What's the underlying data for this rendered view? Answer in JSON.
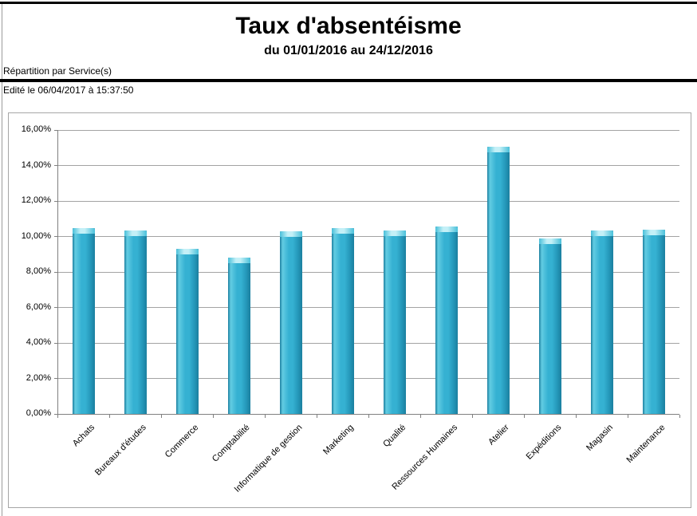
{
  "header": {
    "title": "Taux d'absentéisme",
    "subtitle": "du 01/01/2016 au 24/12/2016",
    "section_label": "Répartition par Service(s)",
    "edited_label": "Edité le 06/04/2017 à 15:37:50"
  },
  "colors": {
    "bar_dark": "#1b7f9f",
    "bar_mid_dark": "#2496b8",
    "bar_main": "#35b1d2",
    "bar_light": "#62cce2",
    "bar_cap": "#49c0da",
    "bar_cap_light": "#c4f0f7",
    "gridline": "#a3a3a3",
    "axis": "#808080",
    "chart_border": "#a6a6a6",
    "text": "#000000"
  },
  "chart_data": {
    "type": "bar",
    "title": "Taux d'absentéisme",
    "subtitle": "du 01/01/2016 au 24/12/2016",
    "categories": [
      "Achats",
      "Bureaux d'études",
      "Commerce",
      "Comptabilité",
      "Informatique de gestion",
      "Marketing",
      "Qualité",
      "Ressources Humaines",
      "Atelier",
      "Expéditions",
      "Magasin",
      "Maintenance"
    ],
    "values": [
      10.45,
      10.35,
      9.3,
      8.8,
      10.3,
      10.45,
      10.35,
      10.55,
      15.05,
      9.9,
      10.35,
      10.4
    ],
    "unit": "%",
    "ylim": [
      0,
      16
    ],
    "y_tick_step": 2,
    "y_tick_labels": [
      "0,00%",
      "2,00%",
      "4,00%",
      "6,00%",
      "8,00%",
      "10,00%",
      "12,00%",
      "14,00%",
      "16,00%"
    ],
    "grid": true,
    "legend": false,
    "xlabel": "",
    "ylabel": ""
  }
}
